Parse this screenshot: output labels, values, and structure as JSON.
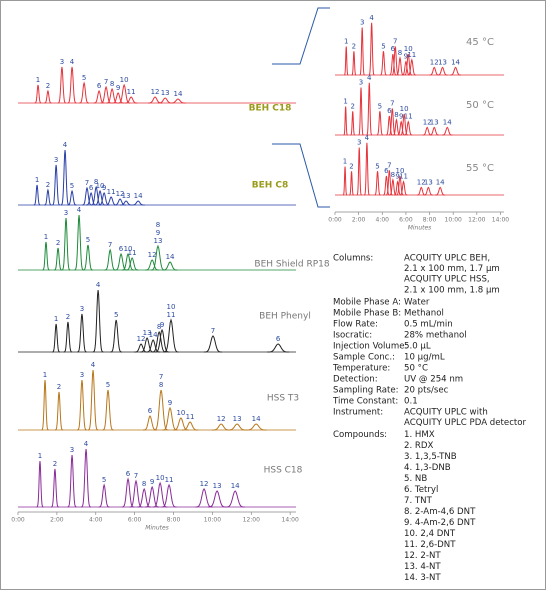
{
  "chart_data": [
    {
      "type": "chromatogram",
      "x_label": "Minutes",
      "xlim": [
        0,
        14.3
      ],
      "xticks": [
        {
          "value": 0,
          "label": "0:00"
        },
        {
          "value": 2,
          "label": "2:00"
        },
        {
          "value": 4,
          "label": "4:00"
        },
        {
          "value": 6,
          "label": "6:00"
        },
        {
          "value": 8,
          "label": "8:00"
        },
        {
          "value": 10,
          "label": "10:00"
        },
        {
          "value": 12,
          "label": "12:00"
        },
        {
          "value": 14,
          "label": "14:00"
        }
      ],
      "series": [
        {
          "name": "BEH C18",
          "color": "#e5343c",
          "x": [
            1.03,
            1.54,
            2.26,
            2.78,
            3.4,
            4.17,
            4.53,
            4.84,
            5.15,
            5.46,
            5.82,
            7.05,
            7.57,
            8.23
          ],
          "values": [
            18,
            12,
            36,
            36,
            20,
            12,
            16,
            14,
            10,
            18,
            6,
            6,
            5,
            4
          ],
          "labels": [
            [
              "1"
            ],
            [
              "2"
            ],
            [
              "3"
            ],
            [
              "4"
            ],
            [
              "5"
            ],
            [
              "6"
            ],
            [
              "7"
            ],
            [
              "8"
            ],
            [
              "9"
            ],
            [
              "10"
            ],
            [
              "11"
            ],
            [
              "12"
            ],
            [
              "13"
            ],
            [
              "14"
            ]
          ]
        },
        {
          "name": "BEH C8",
          "color": "#2a3fa8",
          "x": [
            0.98,
            1.54,
            1.96,
            2.42,
            2.78,
            3.55,
            3.76,
            4.02,
            4.22,
            4.43,
            4.79,
            5.25,
            5.56,
            6.18
          ],
          "values": [
            20,
            15,
            40,
            55,
            14,
            17,
            12,
            18,
            14,
            12,
            8,
            6,
            4,
            4
          ],
          "labels": [
            [
              "1"
            ],
            [
              "2"
            ],
            [
              "3"
            ],
            [
              "4"
            ],
            [
              "5"
            ],
            [
              "7"
            ],
            [
              "6"
            ],
            [
              "8"
            ],
            [
              "10"
            ],
            [
              "9"
            ],
            [
              "11"
            ],
            [
              "12"
            ],
            [
              "13"
            ],
            [
              "14"
            ]
          ]
        },
        {
          "name": "BEH Shield RP18",
          "color": "#1e8a3a",
          "x": [
            1.44,
            2.06,
            2.47,
            3.14,
            3.6,
            4.74,
            5.3,
            5.66,
            5.87,
            6.9,
            7.2,
            7.82
          ],
          "values": [
            28,
            22,
            52,
            55,
            25,
            20,
            16,
            16,
            12,
            10,
            24,
            8
          ],
          "labels": [
            [
              "1"
            ],
            [
              "2"
            ],
            [
              "3"
            ],
            [
              "4"
            ],
            [
              "5"
            ],
            [
              "7"
            ],
            [
              "6"
            ],
            [
              "10"
            ],
            [
              "11"
            ],
            [
              "12"
            ],
            [
              "8",
              "9",
              "13"
            ],
            [
              "14"
            ]
          ]
        },
        {
          "name": "BEH Phenyl",
          "color": "#222222",
          "x": [
            1.96,
            2.57,
            3.29,
            4.12,
            5.05,
            6.33,
            6.64,
            6.95,
            7.26,
            7.41,
            7.87,
            10.03,
            13.38
          ],
          "values": [
            28,
            30,
            38,
            62,
            32,
            8,
            14,
            12,
            20,
            22,
            32,
            16,
            8
          ],
          "labels": [
            [
              "1"
            ],
            [
              "2"
            ],
            [
              "3"
            ],
            [
              "4"
            ],
            [
              "5"
            ],
            [
              "12"
            ],
            [
              "13"
            ],
            [
              "14"
            ],
            [
              "8"
            ],
            [
              "9"
            ],
            [
              "10",
              "11"
            ],
            [
              "7"
            ],
            [
              "6"
            ]
          ]
        },
        {
          "name": "HSS T3",
          "color": "#b8761a",
          "x": [
            1.39,
            2.11,
            3.29,
            3.86,
            4.63,
            6.79,
            7.36,
            7.82,
            8.38,
            8.85,
            10.45,
            11.27,
            12.25
          ],
          "values": [
            50,
            38,
            50,
            60,
            40,
            14,
            40,
            22,
            12,
            8,
            6,
            6,
            6
          ],
          "labels": [
            [
              "1"
            ],
            [
              "2"
            ],
            [
              "3"
            ],
            [
              "4"
            ],
            [
              "5"
            ],
            [
              "6"
            ],
            [
              "7",
              "8"
            ],
            [
              "9"
            ],
            [
              "10"
            ],
            [
              "11"
            ],
            [
              "12"
            ],
            [
              "13"
            ],
            [
              "14"
            ]
          ]
        },
        {
          "name": "HSS C18",
          "color": "#8a2a9a",
          "x": [
            1.13,
            1.9,
            2.78,
            3.5,
            4.43,
            5.66,
            6.07,
            6.49,
            6.9,
            7.31,
            7.77,
            9.57,
            10.24,
            11.17
          ],
          "values": [
            46,
            38,
            52,
            58,
            22,
            28,
            26,
            18,
            20,
            24,
            22,
            18,
            16,
            16
          ],
          "labels": [
            [
              "1"
            ],
            [
              "2"
            ],
            [
              "3"
            ],
            [
              "4"
            ],
            [
              "5"
            ],
            [
              "6"
            ],
            [
              "7"
            ],
            [
              "8"
            ],
            [
              "9"
            ],
            [
              "10"
            ],
            [
              "11"
            ],
            [
              "12"
            ],
            [
              "13"
            ],
            [
              "14"
            ]
          ]
        }
      ]
    },
    {
      "type": "chromatogram",
      "x_label": "Minutes",
      "xlim": [
        0,
        14.3
      ],
      "xticks": [
        {
          "value": 0,
          "label": "0:00"
        },
        {
          "value": 2,
          "label": "2:00"
        },
        {
          "value": 4,
          "label": "4:00"
        },
        {
          "value": 6,
          "label": "6:00"
        },
        {
          "value": 8,
          "label": "8:00"
        },
        {
          "value": 10,
          "label": "10:00"
        },
        {
          "value": 12,
          "label": "12:00"
        },
        {
          "value": 14,
          "label": "14:00"
        }
      ],
      "series": [
        {
          "name": "45 °C",
          "color": "#e5343c",
          "x": [
            0.95,
            1.6,
            2.3,
            3.1,
            4.1,
            4.9,
            5.1,
            5.5,
            6.0,
            6.2,
            6.5,
            8.4,
            9.1,
            10.2
          ],
          "values": [
            30,
            25,
            50,
            55,
            25,
            22,
            30,
            18,
            14,
            22,
            16,
            8,
            8,
            8
          ],
          "labels": [
            [
              "1"
            ],
            [
              "2"
            ],
            [
              "3"
            ],
            [
              "4"
            ],
            [
              "5"
            ],
            [
              "6"
            ],
            [
              "7"
            ],
            [
              "8"
            ],
            [
              "9"
            ],
            [
              "10"
            ],
            [
              "11"
            ],
            [
              "12"
            ],
            [
              "13"
            ],
            [
              "14"
            ]
          ]
        },
        {
          "name": "50 °C",
          "color": "#e5343c",
          "x": [
            0.9,
            1.5,
            2.2,
            2.9,
            3.8,
            4.6,
            4.85,
            5.2,
            5.6,
            5.85,
            6.2,
            7.8,
            8.4,
            9.5
          ],
          "values": [
            30,
            25,
            50,
            55,
            25,
            20,
            28,
            16,
            14,
            22,
            14,
            8,
            8,
            8
          ],
          "labels": [
            [
              "1"
            ],
            [
              "2"
            ],
            [
              "3"
            ],
            [
              "4"
            ],
            [
              "5"
            ],
            [
              "6"
            ],
            [
              "7"
            ],
            [
              "8"
            ],
            [
              "9"
            ],
            [
              "10"
            ],
            [
              "11"
            ],
            [
              "12"
            ],
            [
              "13"
            ],
            [
              "14"
            ]
          ]
        },
        {
          "name": "55 °C",
          "color": "#e5343c",
          "x": [
            0.85,
            1.4,
            2.05,
            2.7,
            3.6,
            4.35,
            4.6,
            4.9,
            5.3,
            5.5,
            5.8,
            7.3,
            7.9,
            8.9
          ],
          "values": [
            30,
            25,
            50,
            55,
            25,
            20,
            26,
            16,
            14,
            20,
            14,
            8,
            8,
            8
          ],
          "labels": [
            [
              "1"
            ],
            [
              "2"
            ],
            [
              "3"
            ],
            [
              "4"
            ],
            [
              "5"
            ],
            [
              "6"
            ],
            [
              "7"
            ],
            [
              "8"
            ],
            [
              "9"
            ],
            [
              "10"
            ],
            [
              "11"
            ],
            [
              "12"
            ],
            [
              "13"
            ],
            [
              "14"
            ]
          ]
        }
      ]
    }
  ],
  "conditions": [
    {
      "label": "Columns:",
      "value": [
        "ACQUITY UPLC BEH,",
        "2.1 x 100 mm, 1.7 µm",
        "ACQUITY UPLC HSS,",
        "2.1 x 100 mm, 1.8 µm"
      ]
    },
    {
      "label": "Mobile Phase A:",
      "value": [
        "Water"
      ]
    },
    {
      "label": "Mobile Phase B:",
      "value": [
        "Methanol"
      ]
    },
    {
      "label": "Flow Rate:",
      "value": [
        "0.5 mL/min"
      ]
    },
    {
      "label": "Isocratic:",
      "value": [
        "28% methanol"
      ]
    },
    {
      "label": "Injection Volume:",
      "value": [
        "5.0 µL"
      ]
    },
    {
      "label": "Sample Conc.:",
      "value": [
        "10 µg/mL"
      ]
    },
    {
      "label": "Temperature:",
      "value": [
        "50 °C"
      ]
    },
    {
      "label": "Detection:",
      "value": [
        "UV @ 254 nm"
      ]
    },
    {
      "label": "Sampling Rate:",
      "value": [
        "20 pts/sec"
      ]
    },
    {
      "label": "Time Constant:",
      "value": [
        "0.1"
      ]
    },
    {
      "label": "Instrument:",
      "value": [
        "ACQUITY UPLC with",
        "ACQUITY UPLC PDA detector"
      ]
    },
    {
      "label": "Compounds:",
      "value": [
        "1. HMX",
        "2. RDX",
        "3. 1,3,5-TNB",
        "4. 1,3-DNB",
        "5. NB",
        "6. Tetryl",
        "7. TNT",
        "8. 2-Am-4,6 DNT",
        "9. 4-Am-2,6 DNT",
        "10. 2,4 DNT",
        "11. 2,6-DNT",
        "12. 2-NT",
        "13. 4-NT",
        "14. 3-NT"
      ]
    }
  ]
}
